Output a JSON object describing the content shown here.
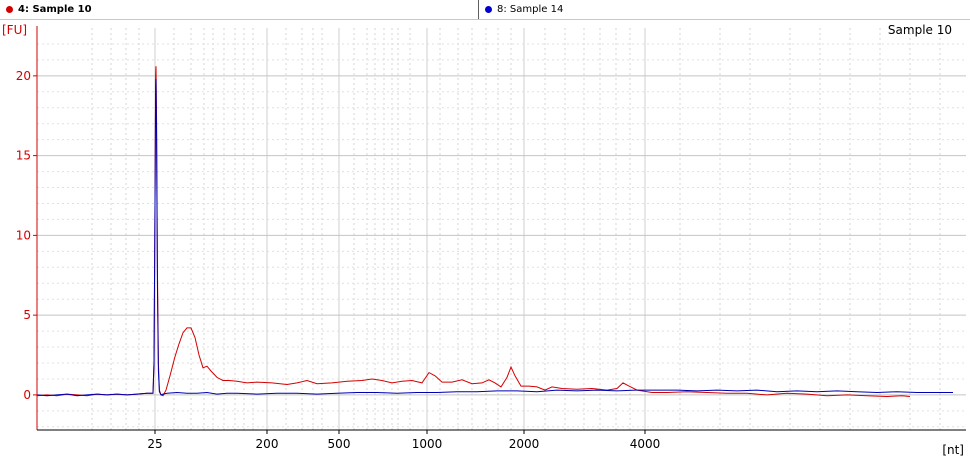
{
  "tabs": [
    {
      "label": "4: Sample 10",
      "color": "#d40000",
      "active": true
    },
    {
      "label": "8: Sample 14",
      "color": "#0000d4",
      "active": false
    }
  ],
  "chart_data": {
    "type": "line",
    "title": "Sample 10",
    "ylabel": "[FU]",
    "xlabel": "[nt]",
    "ylim": [
      -2.2,
      23
    ],
    "y_ticks": [
      0,
      5,
      10,
      15,
      20
    ],
    "x_ticks": [
      "25",
      "200",
      "500",
      "1000",
      "2000",
      "4000"
    ],
    "grid": true,
    "series": [
      {
        "name": "4: Sample 10",
        "color": "#d40000",
        "points": [
          [
            0,
            -0.05
          ],
          [
            10,
            0
          ],
          [
            20,
            -0.05
          ],
          [
            30,
            0.05
          ],
          [
            40,
            0
          ],
          [
            50,
            -0.05
          ],
          [
            60,
            0.05
          ],
          [
            70,
            0
          ],
          [
            80,
            0.05
          ],
          [
            90,
            0
          ],
          [
            100,
            0.05
          ],
          [
            110,
            0.1
          ],
          [
            116,
            0.1
          ],
          [
            117,
            2
          ],
          [
            118,
            12
          ],
          [
            118.6,
            20
          ],
          [
            119,
            20.6
          ],
          [
            119.6,
            17
          ],
          [
            120.4,
            8
          ],
          [
            121.4,
            2
          ],
          [
            122.4,
            0.3
          ],
          [
            124,
            0
          ],
          [
            126,
            -0.05
          ],
          [
            129,
            0.3
          ],
          [
            133,
            1.2
          ],
          [
            138,
            2.4
          ],
          [
            142,
            3.2
          ],
          [
            146,
            3.9
          ],
          [
            150,
            4.2
          ],
          [
            154,
            4.2
          ],
          [
            158,
            3.6
          ],
          [
            162,
            2.5
          ],
          [
            166,
            1.7
          ],
          [
            170,
            1.8
          ],
          [
            174,
            1.5
          ],
          [
            180,
            1.1
          ],
          [
            186,
            0.9
          ],
          [
            192,
            0.9
          ],
          [
            200,
            0.85
          ],
          [
            210,
            0.75
          ],
          [
            220,
            0.8
          ],
          [
            235,
            0.75
          ],
          [
            250,
            0.65
          ],
          [
            260,
            0.75
          ],
          [
            270,
            0.9
          ],
          [
            280,
            0.7
          ],
          [
            295,
            0.75
          ],
          [
            310,
            0.85
          ],
          [
            325,
            0.9
          ],
          [
            335,
            1.0
          ],
          [
            345,
            0.9
          ],
          [
            355,
            0.75
          ],
          [
            365,
            0.85
          ],
          [
            375,
            0.9
          ],
          [
            385,
            0.75
          ],
          [
            392,
            1.4
          ],
          [
            398,
            1.2
          ],
          [
            405,
            0.8
          ],
          [
            415,
            0.8
          ],
          [
            425,
            0.95
          ],
          [
            435,
            0.7
          ],
          [
            445,
            0.75
          ],
          [
            452,
            0.95
          ],
          [
            458,
            0.75
          ],
          [
            464,
            0.5
          ],
          [
            470,
            1.1
          ],
          [
            474,
            1.75
          ],
          [
            478,
            1.2
          ],
          [
            484,
            0.55
          ],
          [
            492,
            0.55
          ],
          [
            500,
            0.5
          ],
          [
            508,
            0.3
          ],
          [
            515,
            0.5
          ],
          [
            525,
            0.4
          ],
          [
            540,
            0.35
          ],
          [
            555,
            0.4
          ],
          [
            570,
            0.3
          ],
          [
            580,
            0.4
          ],
          [
            586,
            0.75
          ],
          [
            592,
            0.55
          ],
          [
            600,
            0.3
          ],
          [
            615,
            0.15
          ],
          [
            630,
            0.15
          ],
          [
            650,
            0.2
          ],
          [
            670,
            0.15
          ],
          [
            690,
            0.1
          ],
          [
            710,
            0.1
          ],
          [
            730,
            0
          ],
          [
            750,
            0.1
          ],
          [
            770,
            0.05
          ],
          [
            790,
            -0.05
          ],
          [
            810,
            0
          ],
          [
            830,
            -0.05
          ],
          [
            850,
            -0.1
          ],
          [
            865,
            -0.05
          ],
          [
            873,
            -0.1
          ]
        ]
      },
      {
        "name": "8: Sample 14",
        "color": "#0000b4",
        "points": [
          [
            0,
            0
          ],
          [
            10,
            -0.05
          ],
          [
            20,
            0
          ],
          [
            30,
            0.05
          ],
          [
            40,
            -0.05
          ],
          [
            50,
            0
          ],
          [
            60,
            0.05
          ],
          [
            70,
            0
          ],
          [
            80,
            0.05
          ],
          [
            90,
            0
          ],
          [
            100,
            0.05
          ],
          [
            110,
            0.1
          ],
          [
            116,
            0.1
          ],
          [
            117,
            2
          ],
          [
            118,
            12
          ],
          [
            118.6,
            19
          ],
          [
            119,
            19.8
          ],
          [
            119.6,
            16
          ],
          [
            120.4,
            7
          ],
          [
            121.4,
            1.5
          ],
          [
            122.4,
            0.2
          ],
          [
            124,
            0
          ],
          [
            126,
            0.05
          ],
          [
            130,
            0.1
          ],
          [
            140,
            0.15
          ],
          [
            150,
            0.1
          ],
          [
            160,
            0.1
          ],
          [
            170,
            0.15
          ],
          [
            180,
            0.05
          ],
          [
            190,
            0.1
          ],
          [
            200,
            0.1
          ],
          [
            220,
            0.05
          ],
          [
            240,
            0.1
          ],
          [
            260,
            0.1
          ],
          [
            280,
            0.05
          ],
          [
            300,
            0.1
          ],
          [
            320,
            0.15
          ],
          [
            340,
            0.15
          ],
          [
            360,
            0.1
          ],
          [
            380,
            0.15
          ],
          [
            400,
            0.15
          ],
          [
            420,
            0.2
          ],
          [
            440,
            0.2
          ],
          [
            460,
            0.25
          ],
          [
            480,
            0.25
          ],
          [
            500,
            0.2
          ],
          [
            520,
            0.3
          ],
          [
            540,
            0.25
          ],
          [
            560,
            0.3
          ],
          [
            580,
            0.25
          ],
          [
            600,
            0.3
          ],
          [
            620,
            0.3
          ],
          [
            640,
            0.3
          ],
          [
            660,
            0.25
          ],
          [
            680,
            0.3
          ],
          [
            700,
            0.25
          ],
          [
            720,
            0.3
          ],
          [
            740,
            0.2
          ],
          [
            760,
            0.25
          ],
          [
            780,
            0.2
          ],
          [
            800,
            0.25
          ],
          [
            820,
            0.2
          ],
          [
            840,
            0.15
          ],
          [
            860,
            0.2
          ],
          [
            880,
            0.15
          ],
          [
            900,
            0.15
          ],
          [
            916,
            0.15
          ]
        ]
      }
    ]
  }
}
